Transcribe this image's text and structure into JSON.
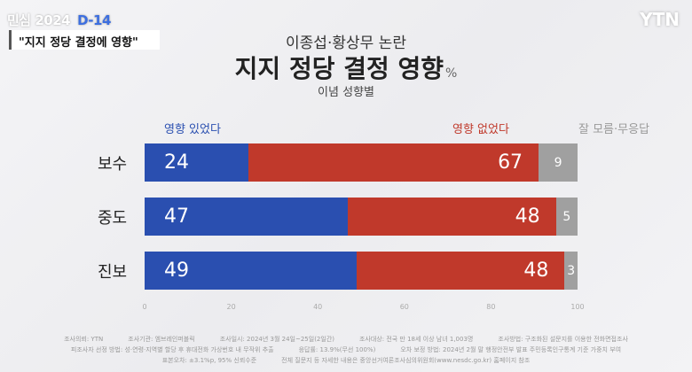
{
  "header": {
    "badge": "민심 2024",
    "dday": "D-14",
    "topic": "\"지지 정당 결정에 영향\"",
    "logo": "YTN"
  },
  "chart_data": {
    "type": "bar",
    "stacked": true,
    "orientation": "horizontal",
    "subtitle": "이종섭·황상무 논란",
    "title": "지지 정당 결정 영향",
    "unit": "%",
    "group_label": "이념 성향별",
    "categories": [
      "보수",
      "중도",
      "진보"
    ],
    "series": [
      {
        "name": "영향 있었다",
        "color": "#2a4fb0",
        "values": [
          24,
          47,
          49
        ]
      },
      {
        "name": "영향 없었다",
        "color": "#c0392b",
        "values": [
          67,
          48,
          48
        ]
      },
      {
        "name": "잘 모름·무응답",
        "color": "#a0a0a0",
        "values": [
          9,
          5,
          3
        ]
      }
    ],
    "xlim": [
      0,
      100
    ],
    "ticks": [
      0,
      20,
      40,
      60,
      80,
      100
    ]
  },
  "footnotes": [
    [
      "조사의뢰: YTN",
      "조사기관: 엠브레인퍼블릭",
      "조사일시: 2024년 3월 24일~25일(2일간)",
      "조사대상: 전국 만 18세 이상 남녀 1,003명",
      "조사방법: 구조화된 설문지를 이용한 전화면접조사"
    ],
    [
      "피조사자 선정 방법: 성·연령·지역별 할당 후 휴대전화 가상번호 내 무작위 추출",
      "응답률: 13.9%(무선 100%)",
      "오차 보정 방법: 2024년 2월 말 행정안전부 발표 주민등록인구통계 기준 가중치 부여"
    ],
    [
      "표본오차: ±3.1%p, 95% 신뢰수준",
      "전체 질문지 등 자세한 내용은 중앙선거여론조사심의위원회(www.nesdc.go.kr) 홈페이지 참조"
    ]
  ]
}
